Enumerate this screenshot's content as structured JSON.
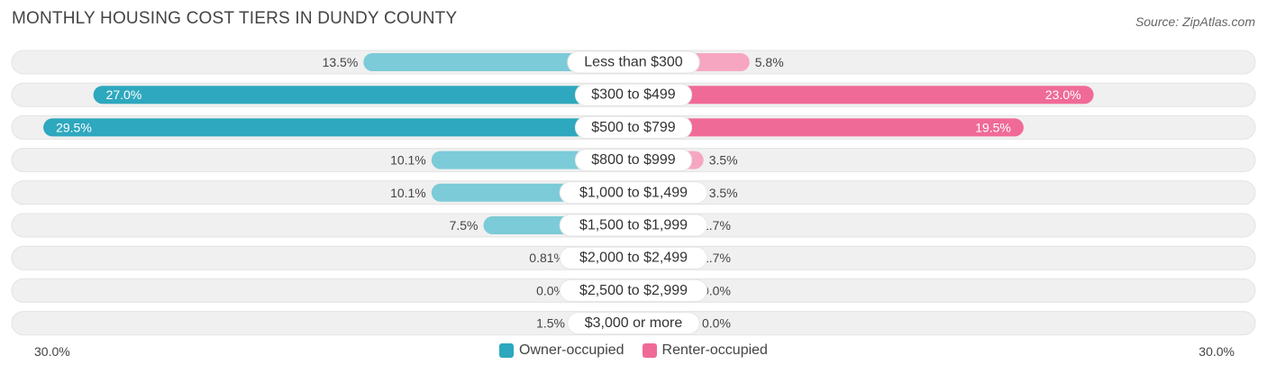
{
  "header": {
    "title": "MONTHLY HOUSING COST TIERS IN DUNDY COUNTY",
    "source": "Source: ZipAtlas.com"
  },
  "colors": {
    "owner_strong": "#2ea8be",
    "owner_light": "#7ccbd8",
    "renter_strong": "#f06a97",
    "renter_light": "#f7a6c2",
    "row_background": "#f0f0f0"
  },
  "chart_data": {
    "type": "bar",
    "orientation": "diverging-horizontal",
    "categories": [
      "Less than $300",
      "$300 to $499",
      "$500 to $799",
      "$800 to $999",
      "$1,000 to $1,499",
      "$1,500 to $1,999",
      "$2,000 to $2,499",
      "$2,500 to $2,999",
      "$3,000 or more"
    ],
    "series": [
      {
        "name": "Owner-occupied",
        "values": [
          13.5,
          27.0,
          29.5,
          10.1,
          10.1,
          7.5,
          0.81,
          0.0,
          1.5
        ],
        "labels": [
          "13.5%",
          "27.0%",
          "29.5%",
          "10.1%",
          "10.1%",
          "7.5%",
          "0.81%",
          "0.0%",
          "1.5%"
        ]
      },
      {
        "name": "Renter-occupied",
        "values": [
          5.8,
          23.0,
          19.5,
          3.5,
          3.5,
          1.7,
          1.7,
          0.0,
          0.0
        ],
        "labels": [
          "5.8%",
          "23.0%",
          "19.5%",
          "3.5%",
          "3.5%",
          "1.7%",
          "1.7%",
          "0.0%",
          "0.0%"
        ]
      }
    ],
    "xlim": [
      -30,
      30
    ],
    "axis_labels": {
      "left": "30.0%",
      "right": "30.0%"
    },
    "legend_position": "bottom-center"
  },
  "legend": {
    "owner": "Owner-occupied",
    "renter": "Renter-occupied"
  }
}
